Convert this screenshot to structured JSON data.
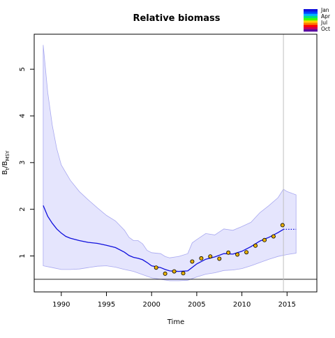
{
  "chart_data": {
    "type": "line",
    "title": "Relative biomass",
    "xlabel": "Time",
    "ylabel": {
      "base": "B",
      "sub1": "t",
      "sep": "/B",
      "sub2": "MSY"
    },
    "xlim": [
      1987.0,
      2018.3
    ],
    "ylim": [
      0.23,
      5.75
    ],
    "x_ticks": [
      1990,
      1995,
      2000,
      2005,
      2010,
      2015
    ],
    "y_ticks": [
      1,
      2,
      3,
      4,
      5
    ],
    "grid": false,
    "legend": {
      "placement": "top-right",
      "entries": [
        "Jan",
        "Apr",
        "Jul",
        "Oct"
      ]
    },
    "reference_lines": {
      "horizontal_y": 0.5,
      "vertical_x": 2014.6
    },
    "colors": {
      "estimate_line": "#1010dd",
      "band_fill": "#e5e5fd",
      "band_edge": "#a8a8f0",
      "observations": "#e8b000",
      "vline": "#c0c0c0",
      "hline": "#000000",
      "legend_gradient": [
        "#5b0aa0",
        "#c8005a",
        "#ff0000",
        "#ff7a00",
        "#ffd400",
        "#40ff00",
        "#00e080",
        "#00b0ff",
        "#0040ff",
        "#1010dd"
      ]
    },
    "series": [
      {
        "role": "estimate",
        "x": [
          1988.0,
          1988.5,
          1989.0,
          1989.5,
          1990.0,
          1990.5,
          1991.0,
          1992.0,
          1993.0,
          1994.0,
          1995.0,
          1996.0,
          1997.0,
          1997.5,
          1998.0,
          1998.5,
          1999.0,
          1999.5,
          2000.0,
          2001.0,
          2001.5,
          2002.0,
          2003.0,
          2004.0,
          2005.0,
          2006.0,
          2007.0,
          2008.0,
          2009.0,
          2010.0,
          2011.0,
          2012.0,
          2013.0,
          2014.0,
          2014.6
        ],
        "y": [
          2.08,
          1.85,
          1.7,
          1.58,
          1.49,
          1.42,
          1.38,
          1.33,
          1.29,
          1.27,
          1.23,
          1.18,
          1.08,
          1.01,
          0.97,
          0.95,
          0.92,
          0.86,
          0.79,
          0.75,
          0.71,
          0.68,
          0.67,
          0.68,
          0.83,
          0.93,
          0.98,
          1.05,
          1.04,
          1.1,
          1.2,
          1.32,
          1.4,
          1.5,
          1.57
        ]
      },
      {
        "role": "forecast",
        "x": [
          2014.6,
          2016.0
        ],
        "y": [
          1.57,
          1.57
        ]
      },
      {
        "role": "band_upper",
        "x": [
          1988.0,
          1988.5,
          1989.0,
          1989.5,
          1990.0,
          1991.0,
          1992.0,
          1993.0,
          1994.0,
          1995.0,
          1996.0,
          1997.0,
          1997.5,
          1998.0,
          1998.5,
          1999.0,
          1999.5,
          2000.0,
          2001.0,
          2001.5,
          2002.0,
          2003.0,
          2004.0,
          2004.5,
          2005.0,
          2006.0,
          2007.0,
          2008.0,
          2009.0,
          2010.0,
          2011.0,
          2012.0,
          2013.0,
          2014.0,
          2014.6,
          2015.0,
          2016.0
        ],
        "y": [
          5.52,
          4.5,
          3.8,
          3.3,
          2.95,
          2.62,
          2.38,
          2.2,
          2.03,
          1.87,
          1.75,
          1.55,
          1.4,
          1.33,
          1.33,
          1.26,
          1.12,
          1.07,
          1.05,
          0.99,
          0.96,
          0.99,
          1.05,
          1.28,
          1.35,
          1.48,
          1.45,
          1.58,
          1.55,
          1.63,
          1.72,
          1.93,
          2.08,
          2.25,
          2.43,
          2.38,
          2.31
        ]
      },
      {
        "role": "band_lower",
        "x": [
          1988.0,
          1989.0,
          1990.0,
          1991.0,
          1992.0,
          1993.0,
          1994.0,
          1995.0,
          1996.0,
          1997.0,
          1998.0,
          1999.0,
          2000.0,
          2001.0,
          2002.0,
          2003.0,
          2004.0,
          2005.0,
          2006.0,
          2007.0,
          2008.0,
          2009.0,
          2010.0,
          2011.0,
          2012.0,
          2013.0,
          2014.0,
          2015.0,
          2016.0
        ],
        "y": [
          0.79,
          0.75,
          0.71,
          0.71,
          0.72,
          0.75,
          0.78,
          0.79,
          0.76,
          0.71,
          0.67,
          0.6,
          0.53,
          0.5,
          0.47,
          0.47,
          0.48,
          0.55,
          0.61,
          0.64,
          0.69,
          0.7,
          0.73,
          0.79,
          0.86,
          0.93,
          0.99,
          1.03,
          1.06
        ]
      },
      {
        "role": "observations",
        "x": [
          2000.5,
          2001.5,
          2002.5,
          2003.5,
          2004.5,
          2005.5,
          2006.5,
          2007.5,
          2008.5,
          2009.5,
          2010.5,
          2011.5,
          2012.5,
          2013.5,
          2014.5
        ],
        "y": [
          0.75,
          0.62,
          0.67,
          0.63,
          0.88,
          0.95,
          0.99,
          0.94,
          1.07,
          1.03,
          1.08,
          1.22,
          1.34,
          1.42,
          1.66
        ]
      }
    ]
  }
}
